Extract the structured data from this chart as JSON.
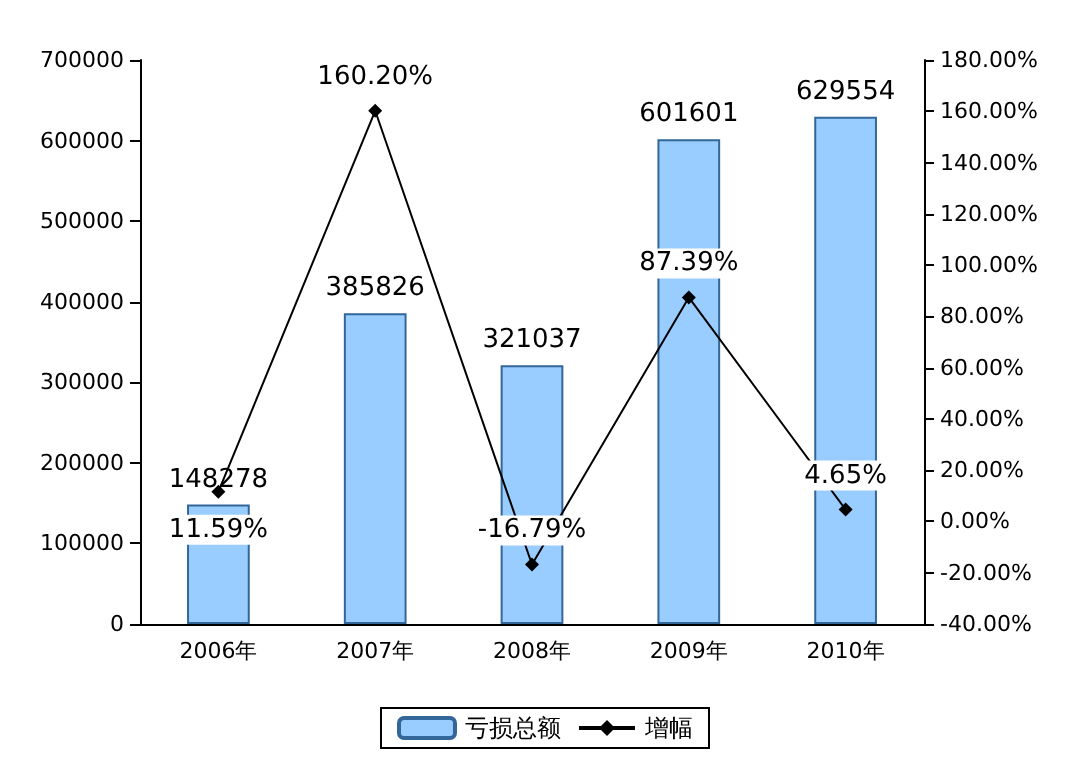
{
  "chart_data": {
    "type": "bar",
    "categories": [
      "2006年",
      "2007年",
      "2008年",
      "2009年",
      "2010年"
    ],
    "series": [
      {
        "name": "亏损总额",
        "color": "#99ccff",
        "values": [
          148278,
          385826,
          321037,
          601601,
          629554
        ],
        "value_labels": [
          "148278",
          "385826",
          "321037",
          "601601",
          "629554"
        ]
      },
      {
        "name": "增幅",
        "type": "line",
        "axis": "y2",
        "color": "#000000",
        "marker": "diamond",
        "values": [
          11.59,
          160.2,
          -16.79,
          87.39,
          4.65
        ],
        "value_labels": [
          "11.59%",
          "160.20%",
          "-16.79%",
          "87.39%",
          "4.65%"
        ]
      }
    ],
    "ylim": [
      0,
      700000
    ],
    "yticks": [
      0,
      100000,
      200000,
      300000,
      400000,
      500000,
      600000,
      700000
    ],
    "y2lim": [
      -40,
      180
    ],
    "y2ticks": [
      {
        "value": -40,
        "label": "-40.00%"
      },
      {
        "value": -20,
        "label": "-20.00%"
      },
      {
        "value": 0,
        "label": "0.00%"
      },
      {
        "value": 20,
        "label": "20.00%"
      },
      {
        "value": 40,
        "label": "40.00%"
      },
      {
        "value": 60,
        "label": "60.00%"
      },
      {
        "value": 80,
        "label": "80.00%"
      },
      {
        "value": 100,
        "label": "100.00%"
      },
      {
        "value": 120,
        "label": "120.00%"
      },
      {
        "value": 140,
        "label": "140.00%"
      },
      {
        "value": 160,
        "label": "160.00%"
      },
      {
        "value": 180,
        "label": "180.00%"
      }
    ],
    "grid": false,
    "legend": "bottom"
  }
}
